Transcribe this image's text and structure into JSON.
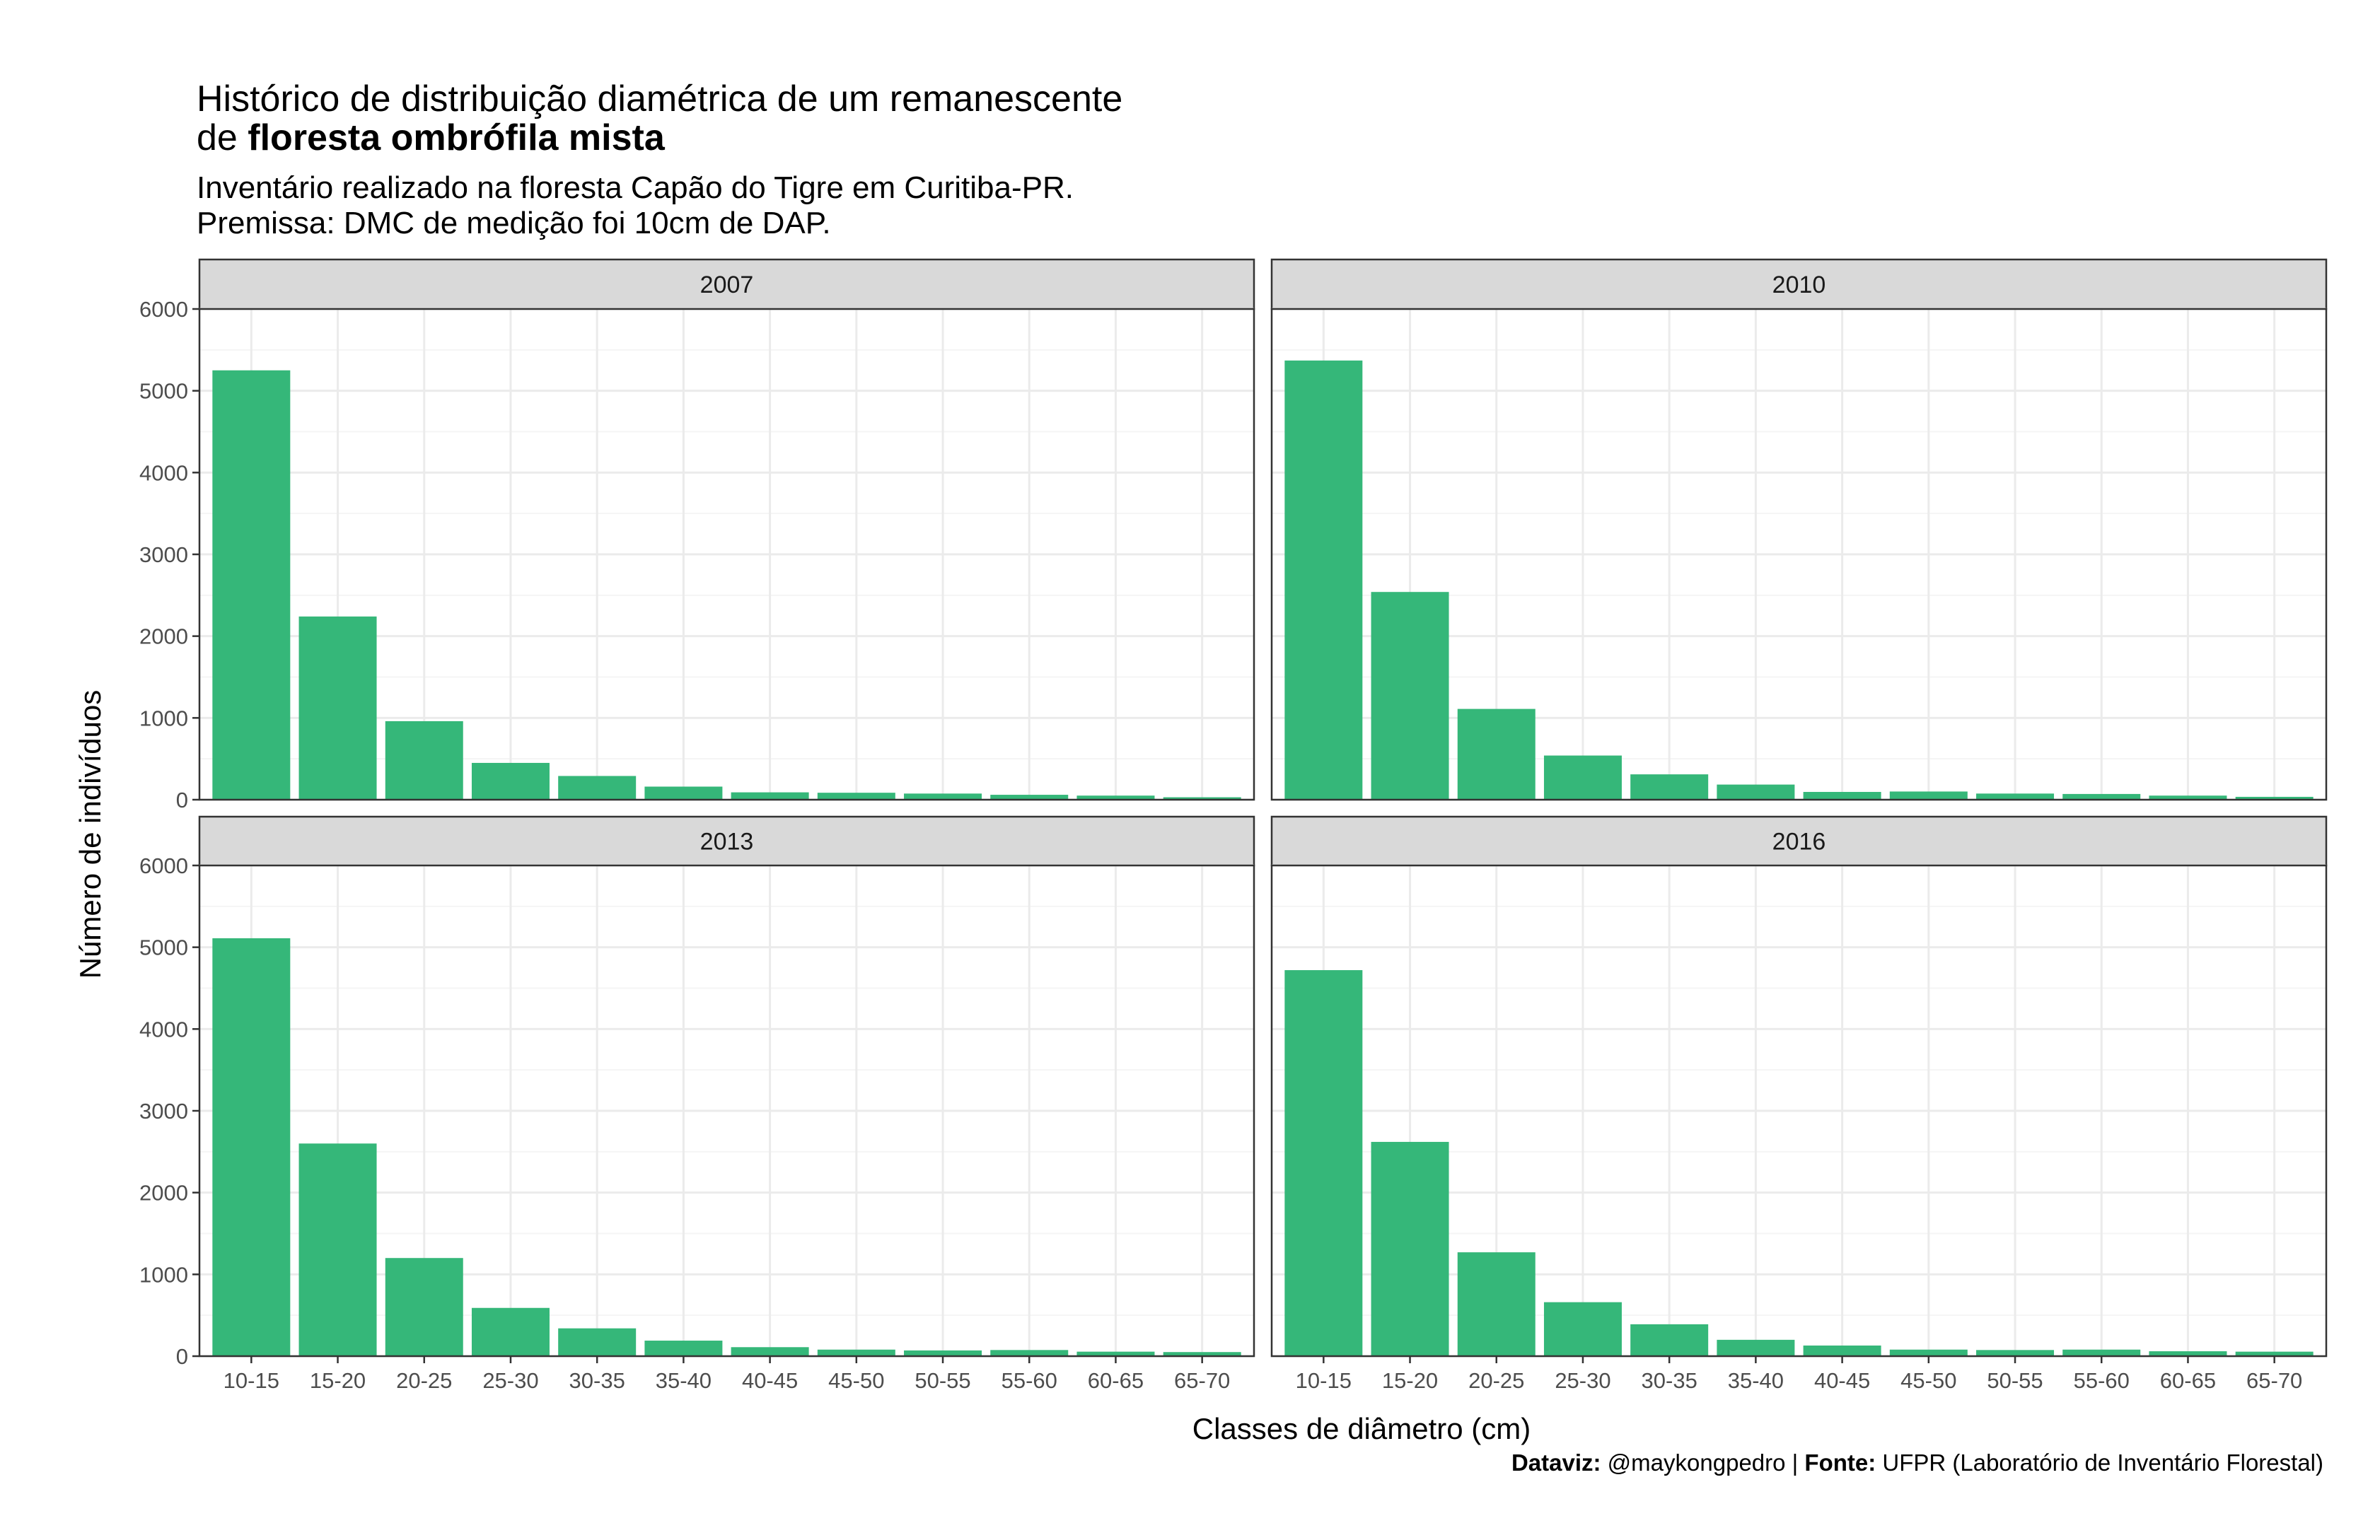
{
  "title": {
    "line1": "Histórico de distribuição diamétrica de um remanescente",
    "line2_prefix": "de ",
    "line2_bold": "floresta ombrófila mista"
  },
  "subtitle": {
    "line1": "Inventário realizado na floresta Capão do Tigre em Curitiba-PR.",
    "line2": "Premissa: DMC de medição foi 10cm de DAP."
  },
  "caption": {
    "label1": "Dataviz:",
    "text1": " @maykongpedro | ",
    "label2": "Fonte:",
    "text2": " UFPR (Laboratório de Inventário Florestal)"
  },
  "colors": {
    "bar": "#35b779",
    "strip_fill": "#d9d9d9",
    "panel_border": "#333333",
    "grid_major": "#ebebeb",
    "grid_minor": "#f5f5f5"
  },
  "chart_data": {
    "type": "bar",
    "facet_layout": "2x2",
    "xlabel": "Classes de diâmetro (cm)",
    "ylabel": "Número de indivíduos",
    "ylim": [
      0,
      6000
    ],
    "yticks": [
      0,
      1000,
      2000,
      3000,
      4000,
      5000,
      6000
    ],
    "grid": true,
    "categories": [
      "10-15",
      "15-20",
      "20-25",
      "25-30",
      "30-35",
      "35-40",
      "40-45",
      "45-50",
      "50-55",
      "55-60",
      "60-65",
      "65-70"
    ],
    "panels": [
      {
        "name": "2007",
        "values": [
          5250,
          2240,
          960,
          450,
          290,
          160,
          90,
          85,
          75,
          60,
          50,
          30
        ]
      },
      {
        "name": "2010",
        "values": [
          5370,
          2540,
          1110,
          540,
          310,
          185,
          95,
          100,
          75,
          70,
          50,
          35
        ]
      },
      {
        "name": "2013",
        "values": [
          5110,
          2600,
          1200,
          590,
          340,
          190,
          110,
          80,
          70,
          75,
          55,
          50
        ]
      },
      {
        "name": "2016",
        "values": [
          4720,
          2620,
          1270,
          660,
          390,
          200,
          130,
          80,
          75,
          80,
          60,
          55
        ]
      }
    ]
  }
}
